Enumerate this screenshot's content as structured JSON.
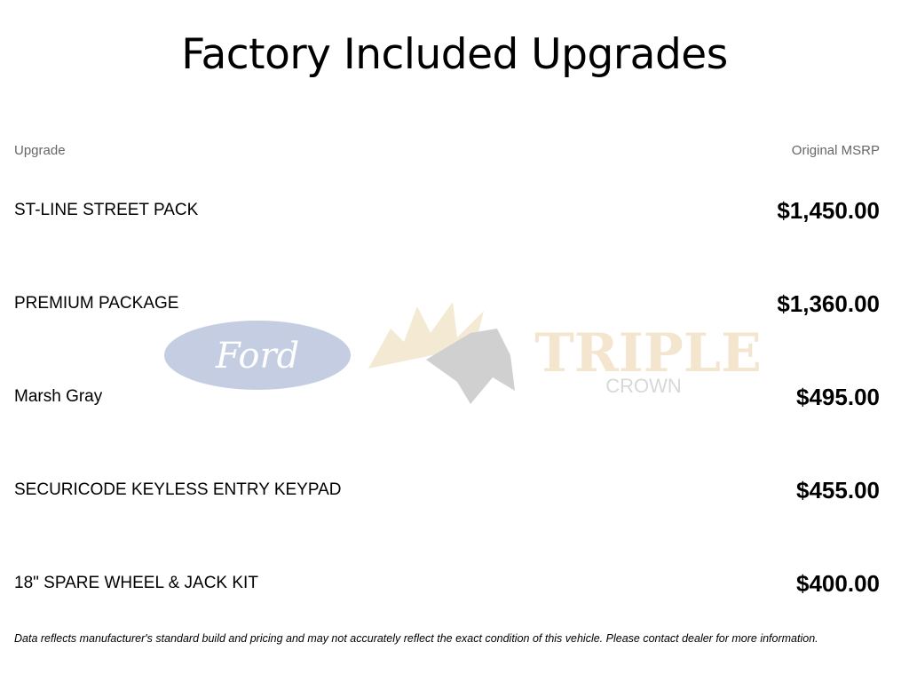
{
  "title": "Factory Included Upgrades",
  "columns": {
    "upgrade": "Upgrade",
    "msrp": "Original MSRP"
  },
  "rows": [
    {
      "name": "ST-LINE STREET PACK",
      "price": "$1,450.00"
    },
    {
      "name": "PREMIUM PACKAGE",
      "price": "$1,360.00"
    },
    {
      "name": "Marsh Gray",
      "price": "$495.00"
    },
    {
      "name": "SECURICODE KEYLESS ENTRY KEYPAD",
      "price": "$455.00"
    },
    {
      "name": "18\" SPARE WHEEL & JACK KIT",
      "price": "$400.00"
    }
  ],
  "watermark": {
    "ford": "Ford",
    "brand": "TRIPLE",
    "brand_sub": "CROWN"
  },
  "footer": "Data reflects manufacturer's standard build and pricing and may not accurately reflect the exact condition of this vehicle. Please contact dealer for more information."
}
